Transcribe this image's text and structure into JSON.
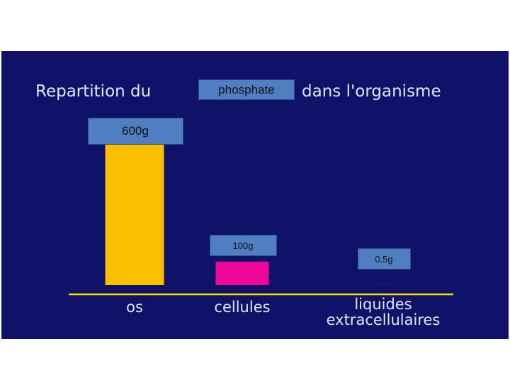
{
  "chart_data": {
    "type": "bar",
    "title": "Repartition du",
    "title_highlight": "phosphate",
    "title_end": "dans l'organisme",
    "categories": [
      "os",
      "cellules",
      "liquides extracellulaires"
    ],
    "values": [
      600,
      100,
      0.5
    ],
    "value_labels": [
      "600g",
      "100g",
      "0.5g"
    ],
    "colors": [
      "#f9bf00",
      "#f0089a",
      "#10d020"
    ]
  }
}
